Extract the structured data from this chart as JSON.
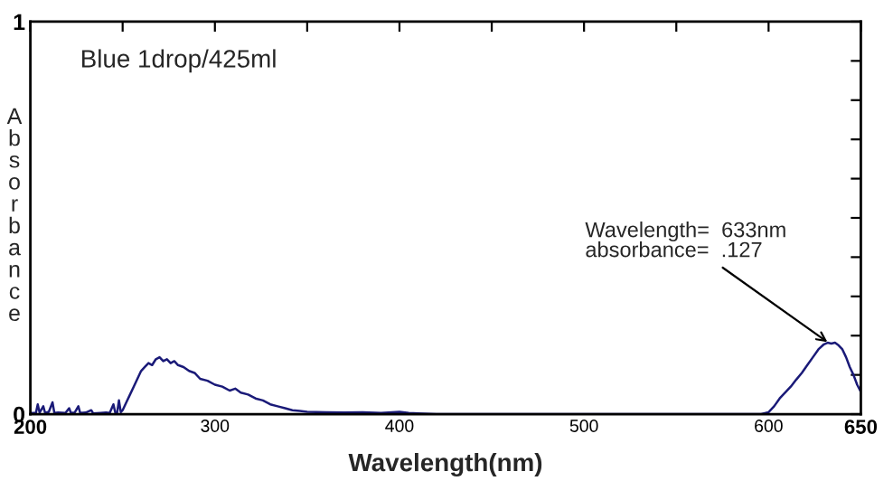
{
  "chart_data": {
    "type": "line",
    "title": "Blue 1drop/425ml",
    "xlabel": "Wavelength(nm)",
    "ylabel": "Absorbance",
    "series": [
      {
        "color": "#1a1a78",
        "x": [
          200,
          203,
          204,
          205,
          207,
          208,
          210,
          212,
          213,
          215,
          219,
          221,
          222,
          224,
          226,
          227,
          230,
          233,
          234,
          238,
          241,
          243,
          245,
          246,
          247,
          248,
          249,
          250,
          252,
          254,
          256,
          258,
          260,
          262,
          264,
          266,
          268,
          270,
          272,
          274,
          276,
          278,
          280,
          283,
          286,
          289,
          292,
          296,
          300,
          304,
          308,
          311,
          314,
          318,
          322,
          326,
          330,
          334,
          338,
          342,
          346,
          350,
          360,
          370,
          380,
          390,
          400,
          405,
          410,
          420,
          440,
          460,
          480,
          500,
          520,
          540,
          560,
          580,
          590,
          596,
          600,
          603,
          606,
          609,
          612,
          615,
          618,
          621,
          624,
          627,
          630,
          632,
          634,
          636,
          638,
          640,
          642,
          644,
          646,
          648,
          650
        ],
        "values": [
          0.003,
          0.003,
          0.025,
          0.004,
          0.02,
          0.003,
          0.006,
          0.03,
          0.003,
          0.004,
          0.003,
          0.015,
          0.003,
          0.004,
          0.02,
          0.003,
          0.004,
          0.01,
          0.002,
          0.003,
          0.004,
          0.003,
          0.025,
          0.004,
          0.003,
          0.035,
          0.005,
          0.01,
          0.03,
          0.05,
          0.07,
          0.09,
          0.11,
          0.12,
          0.13,
          0.125,
          0.14,
          0.145,
          0.135,
          0.14,
          0.13,
          0.135,
          0.125,
          0.12,
          0.11,
          0.105,
          0.09,
          0.085,
          0.075,
          0.07,
          0.06,
          0.065,
          0.055,
          0.05,
          0.04,
          0.035,
          0.025,
          0.02,
          0.015,
          0.01,
          0.008,
          0.006,
          0.005,
          0.004,
          0.005,
          0.003,
          0.006,
          0.003,
          0.002,
          0.0,
          0.0,
          0.0,
          0.0,
          0.0,
          0.0,
          0.0,
          0.0,
          0.0,
          0.0,
          0.0,
          0.005,
          0.02,
          0.04,
          0.055,
          0.07,
          0.088,
          0.105,
          0.125,
          0.145,
          0.165,
          0.178,
          0.182,
          0.18,
          0.182,
          0.175,
          0.165,
          0.145,
          0.12,
          0.1,
          0.075,
          0.057
        ]
      }
    ],
    "xlim": [
      200,
      650
    ],
    "xticks": [
      200,
      {
        "value": 250,
        "label": null
      },
      300,
      {
        "value": 350,
        "label": null
      },
      400,
      {
        "value": 450,
        "label": null
      },
      500,
      {
        "value": 550,
        "label": null
      },
      600,
      650
    ],
    "ylim": [
      0,
      1
    ],
    "yticks": [
      0,
      {
        "value": 0.1,
        "label": null
      },
      {
        "value": 0.2,
        "label": null
      },
      {
        "value": 0.3,
        "label": null
      },
      {
        "value": 0.4,
        "label": null
      },
      {
        "value": 0.5,
        "label": null
      },
      {
        "value": 0.6,
        "label": null
      },
      {
        "value": 0.7,
        "label": null
      },
      {
        "value": 0.8,
        "label": null
      },
      {
        "value": 0.9,
        "label": null
      },
      1
    ],
    "annotations": [
      {
        "text": "Wavelength=  633nm\nabsorbance=  .127",
        "x": 633,
        "y": 0.18
      }
    ],
    "grid": false,
    "legend": false,
    "marker": "none",
    "line_style": "solid"
  }
}
